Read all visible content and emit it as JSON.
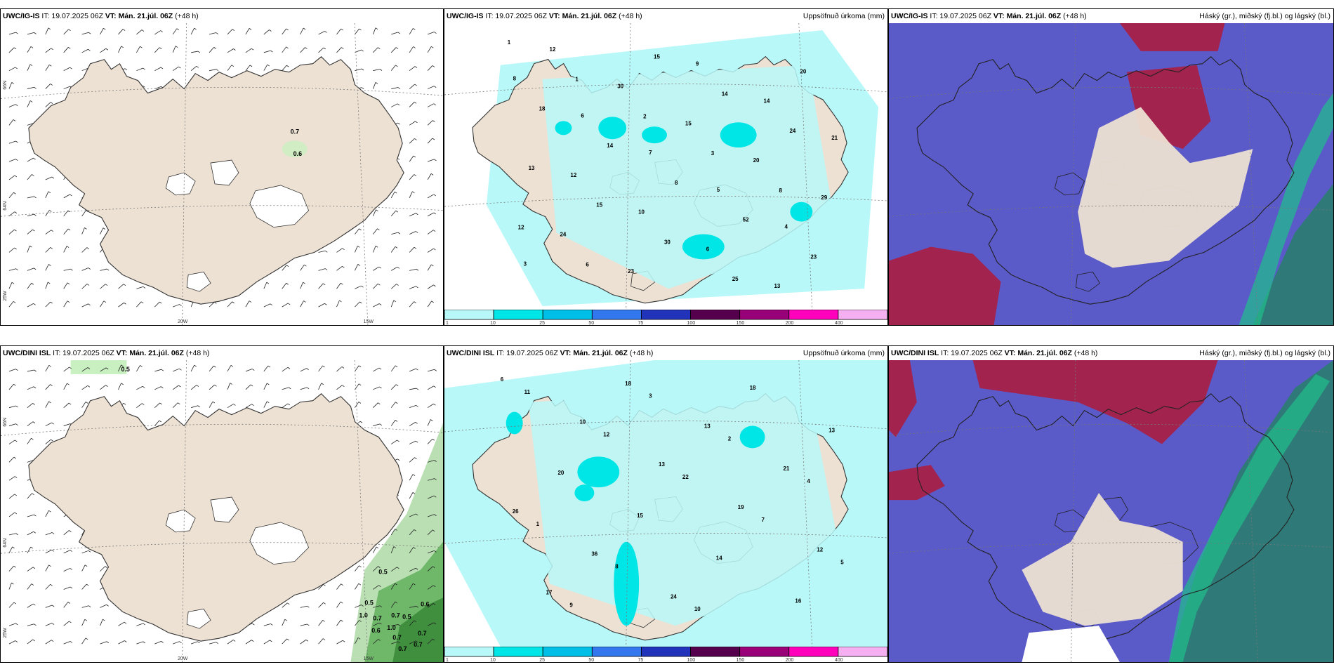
{
  "panels": {
    "p1": {
      "model": "UWC/IG-IS",
      "rest": " IT: 19.07.2025 06Z ",
      "vt": "VT: Mán. 21.júl. 06Z",
      "lead": " (+48 h)",
      "right": ""
    },
    "p2": {
      "model": "UWC/IG-IS",
      "rest": " IT: 19.07.2025 06Z ",
      "vt": "VT: Mán. 21.júl. 06Z",
      "lead": " (+48 h)",
      "right": "Uppsöfnuð úrkoma (mm)"
    },
    "p3": {
      "model": "UWC/IG-IS",
      "rest": " IT: 19.07.2025 06Z ",
      "vt": "VT: Mán. 21.júl. 06Z",
      "lead": " (+48 h)",
      "right": "Háský (gr.), miðský (fj.bl.) og lágský (bl.)"
    },
    "p4": {
      "model": "UWC/DINI ISL",
      "rest": " IT: 19.07.2025 06Z ",
      "vt": "VT: Mán. 21.júl. 06Z",
      "lead": " (+48 h)",
      "right": ""
    },
    "p5": {
      "model": "UWC/DINI ISL",
      "rest": " IT: 19.07.2025 06Z ",
      "vt": "VT: Mán. 21.júl. 06Z",
      "lead": " (+48 h)",
      "right": "Uppsöfnuð úrkoma (mm)"
    },
    "p6": {
      "model": "UWC/DINI ISL",
      "rest": " IT: 19.07.2025 06Z ",
      "vt": "VT: Mán. 21.júl. 06Z",
      "lead": " (+48 h)",
      "right": "Háský (gr.), miðský (fj.bl.) og lágský (bl.)"
    }
  },
  "grid_labels": {
    "lat66": "66N",
    "lat64": "64N",
    "lat65": "65N",
    "lon20": "20W",
    "lon15": "15W",
    "lon25": "25W"
  },
  "colorbar": {
    "ticks": [
      "1",
      "10",
      "25",
      "50",
      "75",
      "100",
      "150",
      "200",
      "400"
    ],
    "colors": [
      "#b8f8f8",
      "#00e5e5",
      "#00bfe6",
      "#3377ee",
      "#2233bb",
      "#55004d",
      "#990077",
      "#ff00bb",
      "#f4b0f0"
    ]
  },
  "wind_labels_top": [
    "0.7",
    "0.6"
  ],
  "wind_labels_bottom": [
    "0.5",
    "0.5",
    "0.5",
    "1.0",
    "0.7",
    "0.7",
    "0.6",
    "1.0",
    "0.5",
    "0.6",
    "0.7",
    "0.7",
    "0.7",
    "0.7"
  ],
  "precip_top": [
    "1",
    "1",
    "2",
    "3",
    "8",
    "12",
    "6",
    "15",
    "14",
    "24",
    "13",
    "15",
    "30",
    "25",
    "20",
    "18",
    "14",
    "8",
    "52",
    "23",
    "12",
    "30",
    "15",
    "20",
    "29",
    "24",
    "23",
    "9",
    "14",
    "21",
    "12",
    "10",
    "6",
    "13",
    "8",
    "6",
    "7",
    "5",
    "4",
    "3"
  ],
  "precip_bottom": [
    "6",
    "10",
    "13",
    "19",
    "12",
    "17",
    "18",
    "13",
    "21",
    "26",
    "36",
    "24",
    "18",
    "13",
    "20",
    "15",
    "14",
    "16",
    "11",
    "12",
    "22",
    "7",
    "5",
    "9",
    "3",
    "2",
    "4",
    "1",
    "8",
    "10"
  ],
  "colors": {
    "land": "#ede1d3",
    "sea": "#ffffff",
    "precip_light": "#b8f8f8",
    "cloud_low": "#5a5ac8",
    "cloud_mid": "#2f7a78",
    "cloud_high": "#b01a3a",
    "green": "#3f8f3f"
  }
}
